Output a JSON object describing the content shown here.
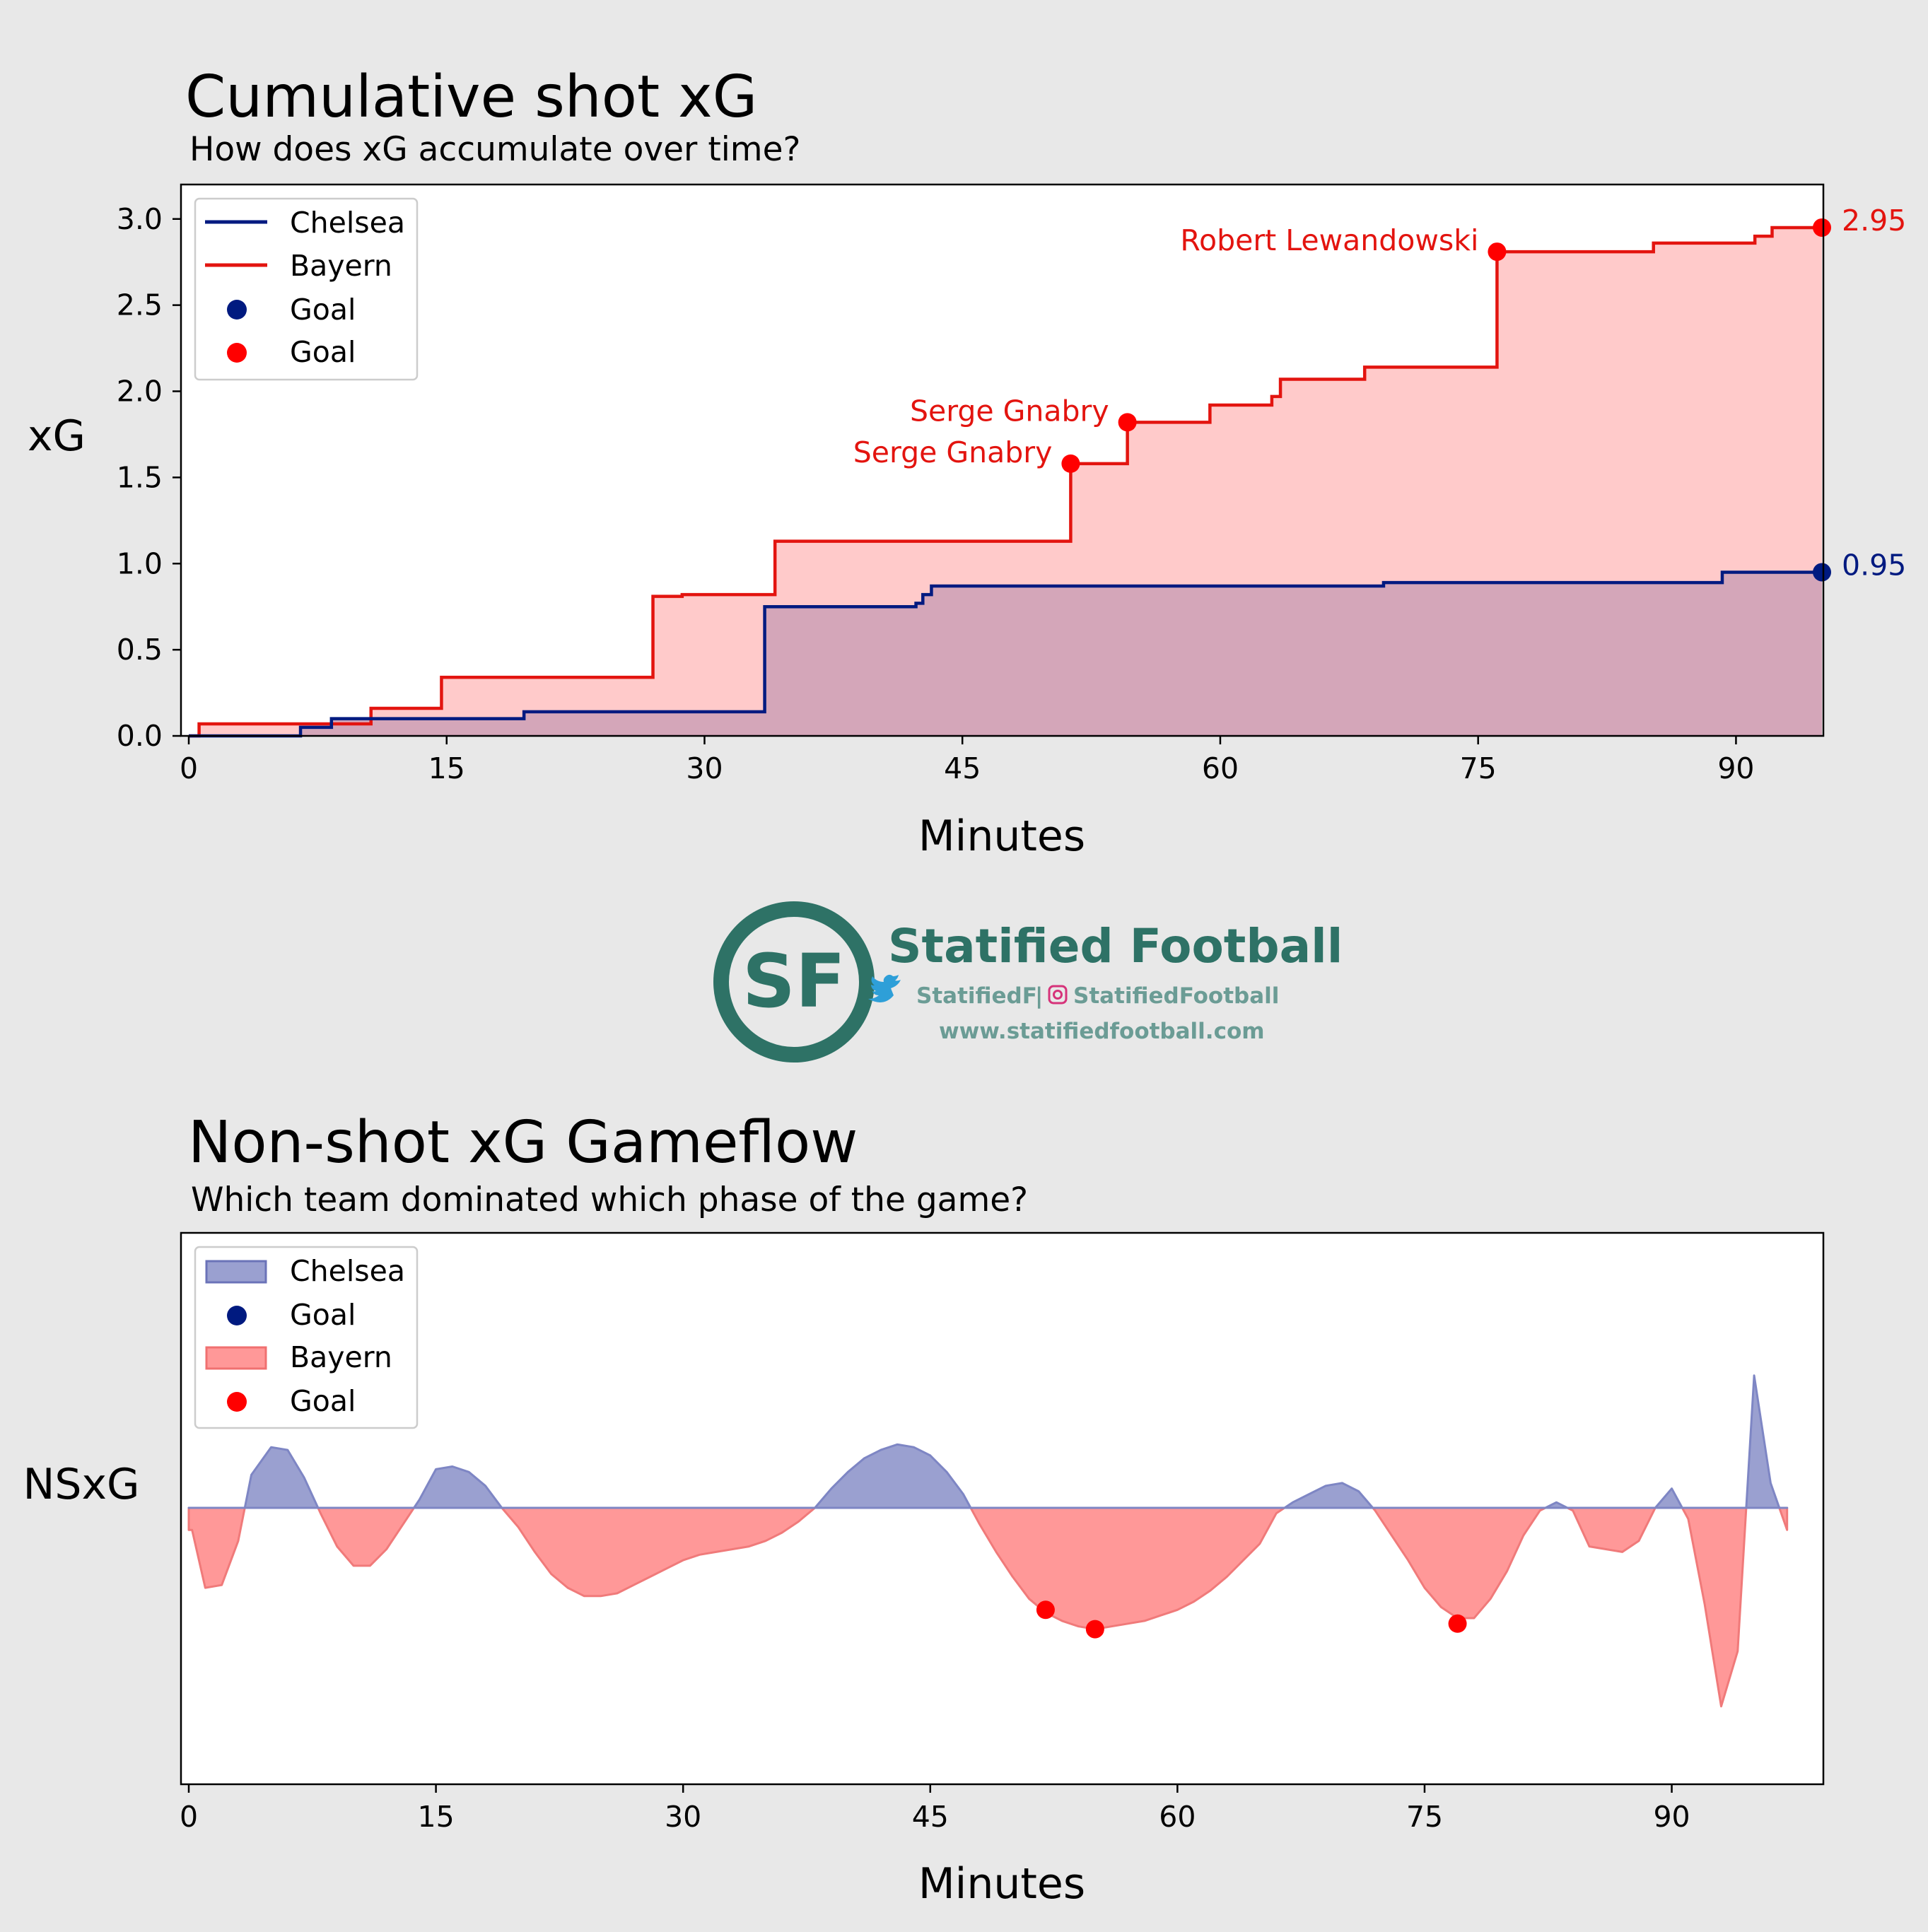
{
  "colors": {
    "background": "#e8e8e8",
    "plot_bg": "#ffffff",
    "chelsea": "#001a80",
    "bayern": "#e3140f",
    "goal_bayern": "#ff0000",
    "cum_fill_bayern": "#ffcaca",
    "cum_fill_chelsea": "#d4a6b9",
    "nsxg_chelsea": "#9aa0d0",
    "nsxg_bayern": "#ff9898",
    "brand": "#2e7266",
    "brand_sub": "#6b9c95",
    "twitter": "#2ea8e8",
    "instagram": "#d6337a"
  },
  "logo": {
    "monogram": "SF",
    "title": "Statified Football",
    "twitter_handle": "StatifiedF",
    "separator": "|",
    "instagram_handle": "StatifiedFootball",
    "website": "www.statifiedfootball.com"
  },
  "chart_data": [
    {
      "type": "line",
      "subtype": "step",
      "title": "Cumulative shot xG",
      "subtitle": "How does xG accumulate over time?",
      "xlabel": "Minutes",
      "ylabel": "xG",
      "xlim": [
        0,
        95
      ],
      "ylim": [
        0,
        3.2
      ],
      "xticks": [
        0,
        15,
        30,
        45,
        60,
        75,
        90
      ],
      "xtick_labels": [
        "0",
        "15",
        "30",
        "45",
        "60",
        "75",
        "90"
      ],
      "yticks": [
        0.0,
        0.5,
        1.0,
        1.5,
        2.0,
        2.5,
        3.0
      ],
      "ytick_labels": [
        "0.0",
        "0.5",
        "1.0",
        "1.5",
        "2.0",
        "2.5",
        "3.0"
      ],
      "legend": [
        "Chelsea",
        "Bayern",
        "Goal",
        "Goal"
      ],
      "legend_position": "top-left",
      "series": [
        {
          "name": "Chelsea",
          "x": [
            0,
            6.5,
            8.3,
            14.8,
            19.5,
            33.5,
            42.3,
            42.7,
            43.2,
            69.5,
            89.2,
            95
          ],
          "y": [
            0,
            0.05,
            0.1,
            0.1,
            0.14,
            0.75,
            0.77,
            0.82,
            0.87,
            0.89,
            0.95,
            0.95
          ],
          "final_label": "0.95"
        },
        {
          "name": "Bayern",
          "x": [
            0,
            0.6,
            8.3,
            10.6,
            14.7,
            27.0,
            28.7,
            34.1,
            51.3,
            54.6,
            59.4,
            63.0,
            63.5,
            68.4,
            76.1,
            85.2,
            91.1,
            92.1,
            95
          ],
          "y": [
            0,
            0.07,
            0.07,
            0.16,
            0.34,
            0.81,
            0.82,
            1.13,
            1.58,
            1.82,
            1.92,
            1.97,
            2.07,
            2.14,
            2.81,
            2.86,
            2.9,
            2.95,
            2.95
          ],
          "final_label": "2.95"
        }
      ],
      "goals": [
        {
          "team": "Bayern",
          "x": 51.3,
          "y": 1.58,
          "label": "Serge Gnabry"
        },
        {
          "team": "Bayern",
          "x": 54.6,
          "y": 1.82,
          "label": "Serge Gnabry"
        },
        {
          "team": "Bayern",
          "x": 76.1,
          "y": 2.81,
          "label": "Robert Lewandowski"
        },
        {
          "team": "Bayern",
          "x": 95,
          "y": 2.95,
          "label": ""
        },
        {
          "team": "Chelsea",
          "x": 95,
          "y": 0.95,
          "label": ""
        }
      ]
    },
    {
      "type": "area",
      "title": "Non-shot xG Gameflow",
      "subtitle": "Which team dominated which phase of the game?",
      "xlabel": "Minutes",
      "ylabel": "NSxG",
      "xlim": [
        0,
        98
      ],
      "ylim": [
        -1.0,
        1.0
      ],
      "xticks": [
        0,
        15,
        30,
        45,
        60,
        75,
        90
      ],
      "xtick_labels": [
        "0",
        "15",
        "30",
        "45",
        "60",
        "75",
        "90"
      ],
      "legend": [
        "Chelsea",
        "Goal",
        "Bayern",
        "Goal"
      ],
      "legend_position": "top-left",
      "x": [
        0,
        0.2,
        1,
        2,
        3,
        3.8,
        5,
        6,
        7,
        8,
        9,
        10,
        11,
        12,
        13,
        14,
        15,
        16,
        17,
        18,
        19,
        20,
        21,
        22,
        23,
        24,
        25,
        26,
        27,
        28,
        29,
        30,
        31,
        32,
        33,
        34,
        35,
        36,
        37,
        38,
        39,
        40,
        41,
        42,
        43,
        44,
        45,
        46,
        47,
        48,
        49,
        50,
        51,
        52,
        53,
        54,
        55,
        56,
        57,
        58,
        59,
        60,
        61,
        62,
        63,
        64,
        65,
        66,
        67,
        68,
        69,
        70,
        71,
        72,
        73,
        74,
        75,
        76,
        77,
        78,
        79,
        80,
        81,
        82,
        83,
        84,
        85,
        86,
        87,
        88,
        89,
        90,
        91,
        92,
        93,
        94,
        95,
        96,
        97
      ],
      "values": [
        -0.08,
        -0.08,
        -0.29,
        -0.28,
        -0.12,
        0.12,
        0.22,
        0.21,
        0.11,
        -0.02,
        -0.14,
        -0.21,
        -0.21,
        -0.15,
        -0.06,
        0.03,
        0.14,
        0.15,
        0.13,
        0.08,
        0.0,
        -0.07,
        -0.16,
        -0.24,
        -0.29,
        -0.32,
        -0.32,
        -0.31,
        -0.28,
        -0.25,
        -0.22,
        -0.19,
        -0.17,
        -0.16,
        -0.15,
        -0.14,
        -0.12,
        -0.09,
        -0.05,
        0.0,
        0.07,
        0.13,
        0.18,
        0.21,
        0.23,
        0.22,
        0.19,
        0.13,
        0.05,
        -0.06,
        -0.16,
        -0.25,
        -0.33,
        -0.38,
        -0.41,
        -0.43,
        -0.44,
        -0.43,
        -0.42,
        -0.41,
        -0.39,
        -0.37,
        -0.34,
        -0.3,
        -0.25,
        -0.19,
        -0.13,
        -0.02,
        0.02,
        0.05,
        0.08,
        0.09,
        0.06,
        -0.01,
        -0.1,
        -0.19,
        -0.29,
        -0.36,
        -0.4,
        -0.4,
        -0.33,
        -0.23,
        -0.1,
        -0.01,
        0.02,
        -0.01,
        -0.14,
        -0.15,
        -0.16,
        -0.12,
        0.0,
        0.07,
        -0.04,
        -0.35,
        -0.72,
        -0.52,
        0.48,
        0.09,
        -0.08
      ],
      "goals": [
        {
          "team": "Bayern",
          "x": 52,
          "y": -0.37
        },
        {
          "team": "Bayern",
          "x": 55,
          "y": -0.44
        },
        {
          "team": "Bayern",
          "x": 77,
          "y": -0.42
        }
      ]
    }
  ]
}
